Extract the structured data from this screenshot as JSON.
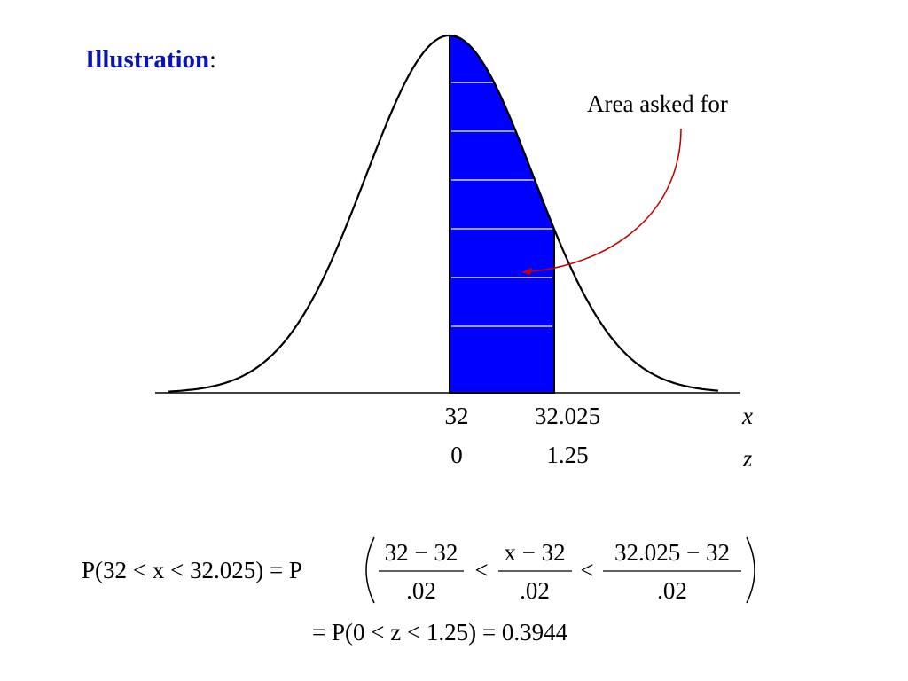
{
  "title": {
    "text": "Illustration",
    "punct": ":"
  },
  "annotation": "Area asked for",
  "axis": {
    "x": {
      "labels": [
        "32",
        "32.025"
      ],
      "var": "x"
    },
    "z": {
      "labels": [
        "0",
        "1.25"
      ],
      "var": "z"
    }
  },
  "formula": {
    "lhs": "P(32 < x < 32.025) = P",
    "fractions": [
      {
        "num": "32 − 32",
        "den": ".02"
      },
      {
        "num": "x − 32",
        "den": ".02"
      },
      {
        "num": "32.025 − 32",
        "den": ".02"
      }
    ],
    "ops": [
      "<",
      "<"
    ],
    "line2": "= P(0 < z < 1.25) = 0.3944"
  }
}
